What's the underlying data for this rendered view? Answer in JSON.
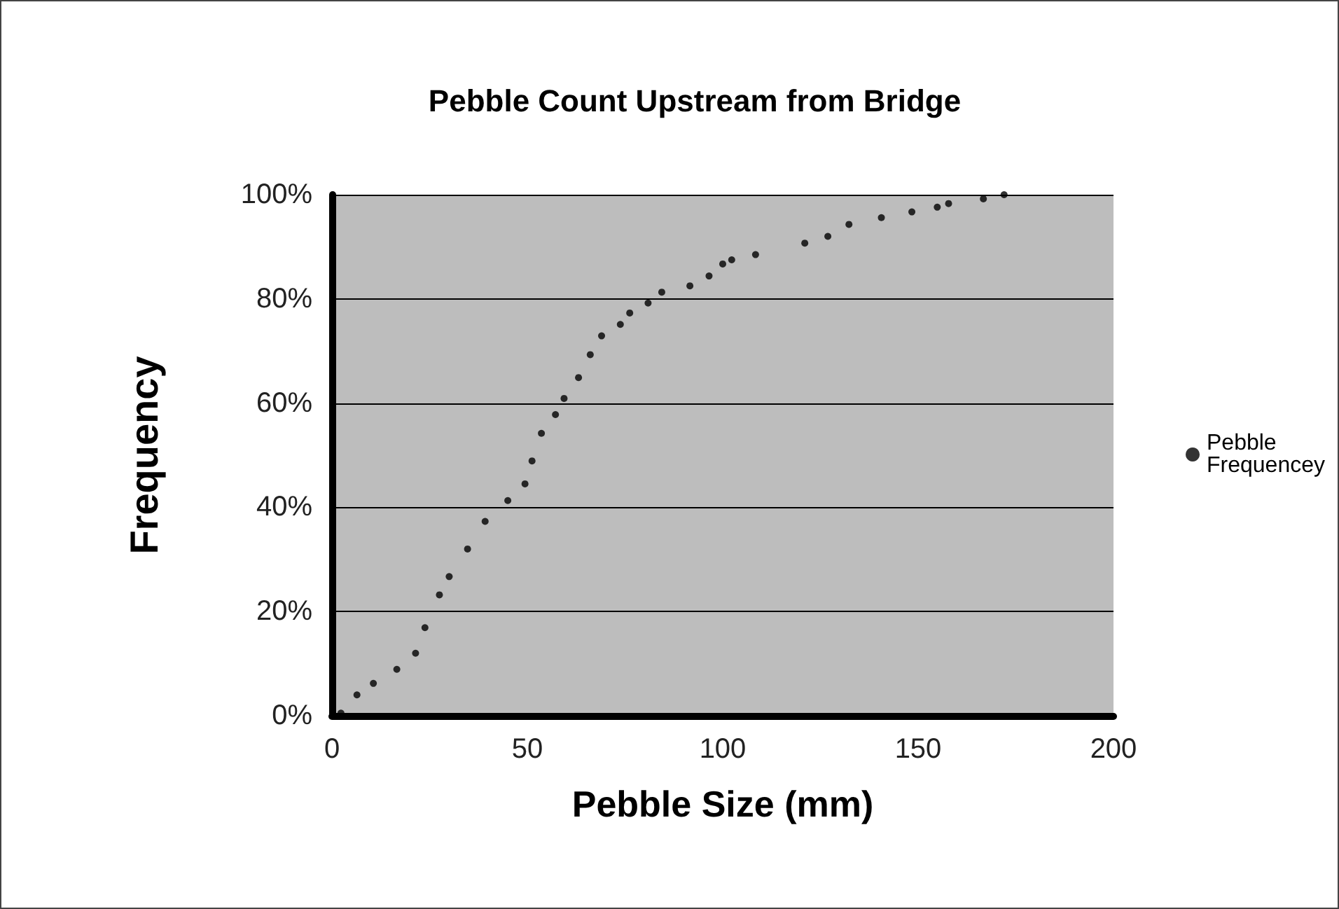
{
  "chart_data": {
    "type": "scatter",
    "title": "Pebble Count Upstream from Bridge",
    "xlabel": "Pebble Size (mm)",
    "ylabel": "Frequency",
    "x": [
      2.3,
      6.4,
      10.6,
      16.6,
      21.4,
      23.8,
      27.5,
      30,
      34.7,
      39.2,
      45,
      49.4,
      51.2,
      53.6,
      57.2,
      59.4,
      63.1,
      66.1,
      69,
      73.8,
      76.2,
      80.9,
      84.4,
      91.6,
      96.5,
      100,
      102.3,
      108.4,
      121,
      126.9,
      132.3,
      140.6,
      148.4,
      154.9,
      157.8,
      166.7,
      172
    ],
    "series": [
      {
        "name": "Pebble Frequencey",
        "color": "#000000",
        "values": [
          0.5,
          4,
          6.2,
          8.9,
          12,
          16.9,
          23.2,
          26.7,
          32,
          37.3,
          41.3,
          44.5,
          48.9,
          54.2,
          57.8,
          60.9,
          64.9,
          69.3,
          72.9,
          75.1,
          77.3,
          79.2,
          81.3,
          82.5,
          84.4,
          86.7,
          87.5,
          88.5,
          90.7,
          92,
          94.3,
          95.6,
          96.7,
          97.6,
          98.3,
          99.2,
          100
        ]
      }
    ],
    "xlim": [
      0,
      200
    ],
    "xticks": [
      0,
      50,
      100,
      150,
      200
    ],
    "ylim": [
      0,
      100
    ],
    "yticks": [
      {
        "value": 0,
        "label": "0%"
      },
      {
        "value": 20,
        "label": "20%"
      },
      {
        "value": 40,
        "label": "40%"
      },
      {
        "value": 60,
        "label": "60%"
      },
      {
        "value": 80,
        "label": "80%"
      },
      {
        "value": 100,
        "label": "100%"
      }
    ],
    "grid": "y",
    "legend": "right",
    "marker": "circle"
  }
}
